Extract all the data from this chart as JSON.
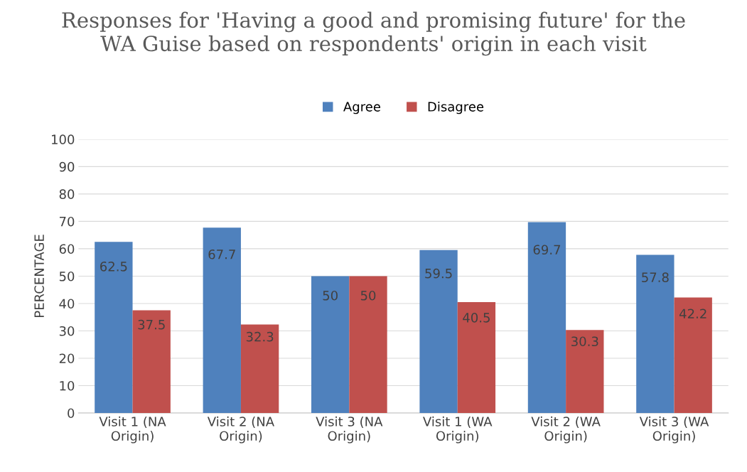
{
  "chart_data": {
    "type": "bar",
    "title": "Responses for 'Having a good and promising future' for the\nWA Guise based on respondents' origin in each visit",
    "ylabel": "PERCENTAGE",
    "categories": [
      "Visit 1 (NA\nOrigin)",
      "Visit 2 (NA\nOrigin)",
      "Visit 3 (NA\nOrigin)",
      "Visit 1 (WA\nOrigin)",
      "Visit 2 (WA\nOrigin)",
      "Visit 3 (WA\nOrigin)"
    ],
    "series": [
      {
        "name": "Agree",
        "color": "#4f81bd",
        "values": [
          62.5,
          67.7,
          50,
          59.5,
          69.7,
          57.8
        ]
      },
      {
        "name": "Disagree",
        "color": "#c0504d",
        "values": [
          37.5,
          32.3,
          50,
          40.5,
          30.3,
          42.2
        ]
      }
    ],
    "ylim": [
      0,
      100
    ],
    "yticks": [
      0,
      10,
      20,
      30,
      40,
      50,
      60,
      70,
      80,
      90,
      100
    ],
    "grid": "y",
    "legend": "top",
    "data_labels": true
  }
}
